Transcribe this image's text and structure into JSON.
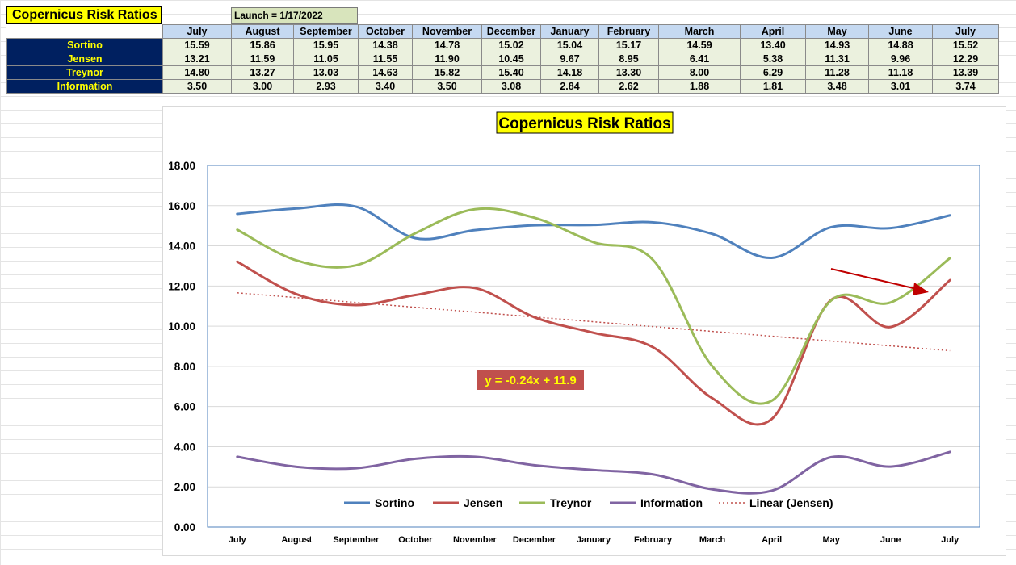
{
  "sheet": {
    "title": "Copernicus Risk Ratios",
    "launch": "Launch = 1/17/2022"
  },
  "table": {
    "months": [
      "July",
      "August",
      "September",
      "October",
      "November",
      "December",
      "January",
      "February",
      "March",
      "April",
      "May",
      "June",
      "July"
    ],
    "rows": [
      {
        "label": "Sortino",
        "values": [
          "15.59",
          "15.86",
          "15.95",
          "14.38",
          "14.78",
          "15.02",
          "15.04",
          "15.17",
          "14.59",
          "13.40",
          "14.93",
          "14.88",
          "15.52"
        ]
      },
      {
        "label": "Jensen",
        "values": [
          "13.21",
          "11.59",
          "11.05",
          "11.55",
          "11.90",
          "10.45",
          "9.67",
          "8.95",
          "6.41",
          "5.38",
          "11.31",
          "9.96",
          "12.29"
        ]
      },
      {
        "label": "Treynor",
        "values": [
          "14.80",
          "13.27",
          "13.03",
          "14.63",
          "15.82",
          "15.40",
          "14.18",
          "13.30",
          "8.00",
          "6.29",
          "11.28",
          "11.18",
          "13.39"
        ]
      },
      {
        "label": "Information",
        "values": [
          "3.50",
          "3.00",
          "2.93",
          "3.40",
          "3.50",
          "3.08",
          "2.84",
          "2.62",
          "1.88",
          "1.81",
          "3.48",
          "3.01",
          "3.74"
        ]
      }
    ]
  },
  "chart_data": {
    "type": "line",
    "title": "Copernicus Risk Ratios",
    "categories": [
      "July",
      "August",
      "September",
      "October",
      "November",
      "December",
      "January",
      "February",
      "March",
      "April",
      "May",
      "June",
      "July"
    ],
    "series": [
      {
        "name": "Sortino",
        "color": "#4f81bd",
        "values": [
          15.59,
          15.86,
          15.95,
          14.38,
          14.78,
          15.02,
          15.04,
          15.17,
          14.59,
          13.4,
          14.93,
          14.88,
          15.52
        ]
      },
      {
        "name": "Jensen",
        "color": "#c0504d",
        "values": [
          13.21,
          11.59,
          11.05,
          11.55,
          11.9,
          10.45,
          9.67,
          8.95,
          6.41,
          5.38,
          11.31,
          9.96,
          12.29
        ]
      },
      {
        "name": "Treynor",
        "color": "#9bbb59",
        "values": [
          14.8,
          13.27,
          13.03,
          14.63,
          15.82,
          15.4,
          14.18,
          13.3,
          8.0,
          6.29,
          11.28,
          11.18,
          13.39
        ]
      },
      {
        "name": "Information",
        "color": "#8064a2",
        "values": [
          3.5,
          3.0,
          2.93,
          3.4,
          3.5,
          3.08,
          2.84,
          2.62,
          1.88,
          1.81,
          3.48,
          3.01,
          3.74
        ]
      }
    ],
    "trendline": {
      "name": "Linear (Jensen)",
      "color": "#c0504d",
      "slope": -0.24,
      "intercept": 11.9,
      "equation": "y = -0.24x + 11.9"
    },
    "ylim": [
      0,
      18
    ],
    "yticks": [
      "0.00",
      "2.00",
      "4.00",
      "6.00",
      "8.00",
      "10.00",
      "12.00",
      "14.00",
      "16.00",
      "18.00"
    ],
    "grid": true,
    "legend": "bottom",
    "annotation_arrow_color": "#c00000",
    "title_bg": "#ffff00",
    "equation_bg": "#c0504d",
    "equation_color": "#ffff00"
  }
}
